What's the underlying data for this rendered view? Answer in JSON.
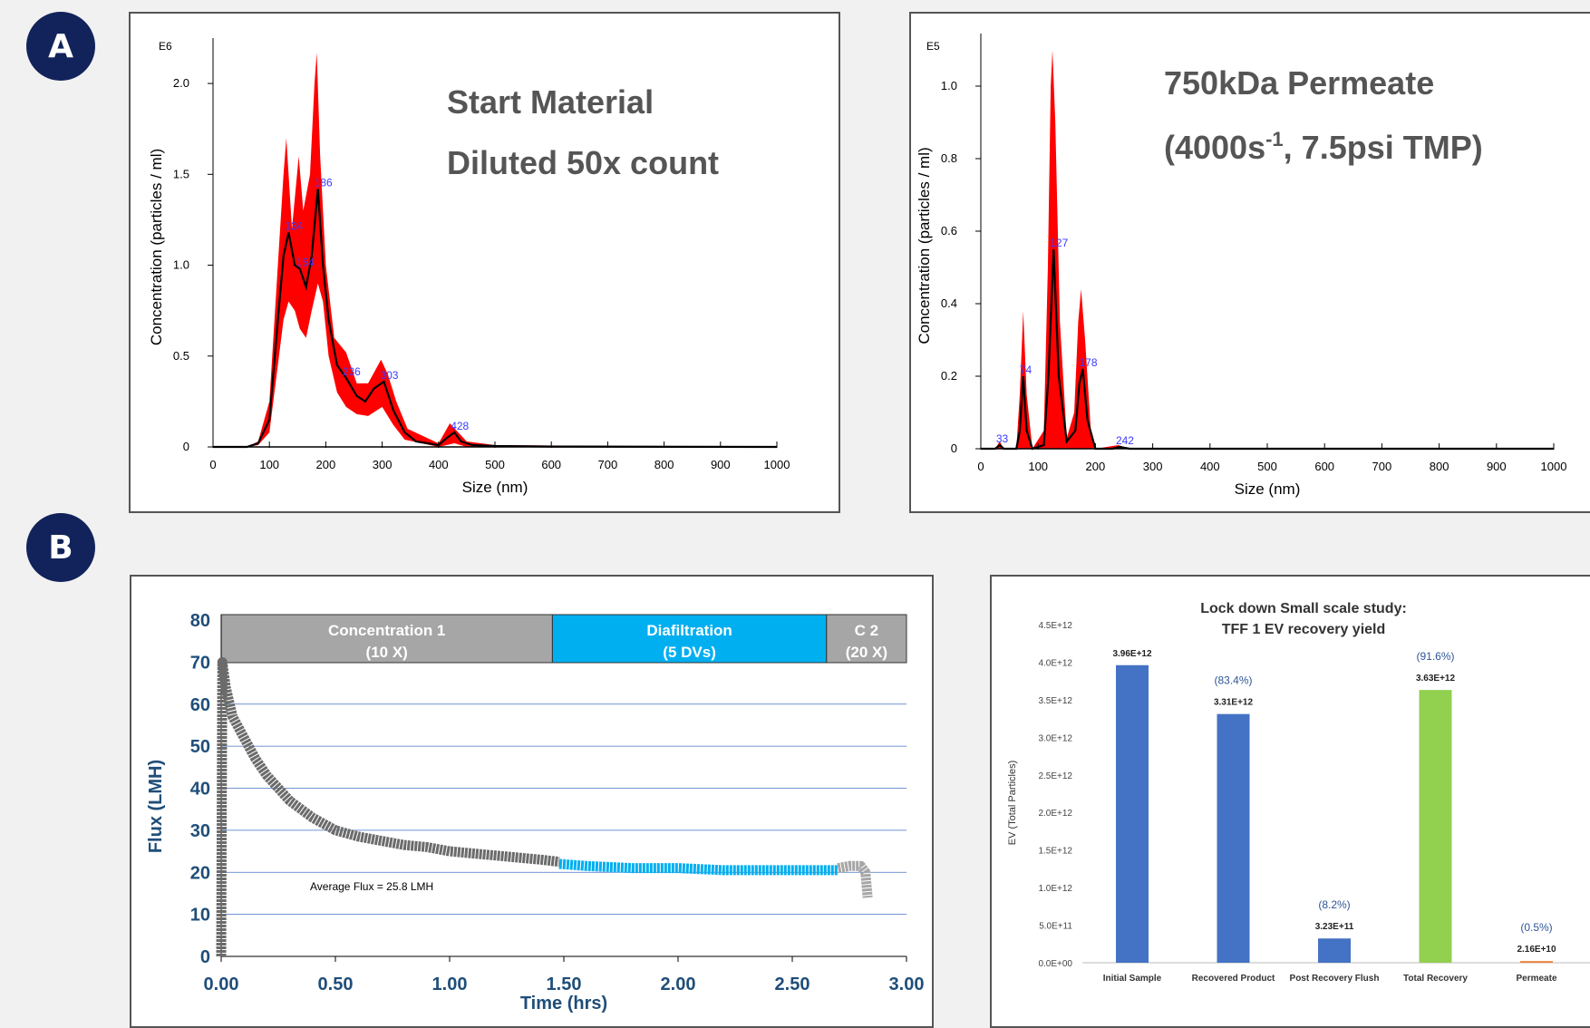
{
  "badges": {
    "a": "A",
    "b": "B"
  },
  "chart_data": [
    {
      "type": "line",
      "title": "Start Material",
      "subtitle": "Diluted 50x count",
      "multiplier_label": "E6",
      "xlabel": "Size (nm)",
      "ylabel": "Concentration (particles / ml)",
      "xlim": [
        0,
        1000
      ],
      "ylim": [
        0,
        2.2
      ],
      "xticks": [
        0,
        100,
        200,
        300,
        400,
        500,
        600,
        700,
        800,
        900,
        1000
      ],
      "yticks": [
        {
          "v": 0,
          "label": "0"
        },
        {
          "v": 0.5,
          "label": "0.5"
        },
        {
          "v": 1.0,
          "label": "1.0"
        },
        {
          "v": 1.5,
          "label": "1.5"
        },
        {
          "v": 2.0,
          "label": "2.0"
        }
      ],
      "series": [
        {
          "role": "mean",
          "color": "#000000",
          "values": [
            [
              0,
              0
            ],
            [
              60,
              0
            ],
            [
              80,
              0.02
            ],
            [
              100,
              0.15
            ],
            [
              115,
              0.7
            ],
            [
              125,
              1.05
            ],
            [
              134,
              1.18
            ],
            [
              145,
              1.0
            ],
            [
              154,
              0.98
            ],
            [
              165,
              0.88
            ],
            [
              175,
              1.05
            ],
            [
              186,
              1.42
            ],
            [
              195,
              1.0
            ],
            [
              205,
              0.7
            ],
            [
              220,
              0.45
            ],
            [
              236,
              0.38
            ],
            [
              255,
              0.28
            ],
            [
              270,
              0.25
            ],
            [
              285,
              0.32
            ],
            [
              303,
              0.36
            ],
            [
              320,
              0.2
            ],
            [
              340,
              0.08
            ],
            [
              360,
              0.03
            ],
            [
              400,
              0.01
            ],
            [
              415,
              0.05
            ],
            [
              428,
              0.08
            ],
            [
              440,
              0.03
            ],
            [
              460,
              0.01
            ],
            [
              500,
              0.005
            ],
            [
              600,
              0.002
            ],
            [
              1000,
              0
            ]
          ]
        },
        {
          "role": "error_band",
          "color": "#ff0000",
          "upper": [
            [
              0,
              0
            ],
            [
              60,
              0
            ],
            [
              80,
              0.03
            ],
            [
              100,
              0.25
            ],
            [
              115,
              1.0
            ],
            [
              125,
              1.5
            ],
            [
              130,
              1.7
            ],
            [
              140,
              1.2
            ],
            [
              152,
              1.6
            ],
            [
              160,
              1.3
            ],
            [
              172,
              1.5
            ],
            [
              180,
              2.0
            ],
            [
              184,
              2.17
            ],
            [
              190,
              1.6
            ],
            [
              200,
              1.0
            ],
            [
              215,
              0.6
            ],
            [
              236,
              0.52
            ],
            [
              255,
              0.35
            ],
            [
              275,
              0.35
            ],
            [
              298,
              0.48
            ],
            [
              310,
              0.4
            ],
            [
              325,
              0.25
            ],
            [
              345,
              0.1
            ],
            [
              400,
              0.02
            ],
            [
              420,
              0.13
            ],
            [
              435,
              0.08
            ],
            [
              450,
              0.03
            ],
            [
              500,
              0.01
            ],
            [
              1000,
              0
            ]
          ],
          "lower": [
            [
              0,
              0
            ],
            [
              60,
              0
            ],
            [
              80,
              0.01
            ],
            [
              100,
              0.08
            ],
            [
              115,
              0.45
            ],
            [
              125,
              0.7
            ],
            [
              134,
              0.8
            ],
            [
              145,
              0.75
            ],
            [
              154,
              0.65
            ],
            [
              165,
              0.6
            ],
            [
              175,
              0.75
            ],
            [
              186,
              0.9
            ],
            [
              195,
              0.8
            ],
            [
              205,
              0.5
            ],
            [
              220,
              0.3
            ],
            [
              236,
              0.22
            ],
            [
              255,
              0.18
            ],
            [
              275,
              0.17
            ],
            [
              300,
              0.22
            ],
            [
              320,
              0.12
            ],
            [
              340,
              0.04
            ],
            [
              400,
              0.0
            ],
            [
              428,
              0.02
            ],
            [
              450,
              0.0
            ],
            [
              1000,
              0
            ]
          ]
        }
      ],
      "peak_labels": [
        {
          "x": 134,
          "y": 1.18,
          "text": "134"
        },
        {
          "x": 154,
          "y": 0.98,
          "text": "154"
        },
        {
          "x": 186,
          "y": 1.42,
          "text": "186"
        },
        {
          "x": 236,
          "y": 0.38,
          "text": "236"
        },
        {
          "x": 303,
          "y": 0.36,
          "text": "303"
        },
        {
          "x": 428,
          "y": 0.08,
          "text": "428"
        }
      ]
    },
    {
      "type": "line",
      "title": "750kDa Permeate",
      "subtitle": "(4000s",
      "subtitle_sup": "-1",
      "subtitle_rest": ", 7.5psi TMP)",
      "multiplier_label": "E5",
      "xlabel": "Size (nm)",
      "ylabel": "Concentration (particles / ml)",
      "xlim": [
        0,
        1000
      ],
      "ylim": [
        0,
        1.12
      ],
      "xticks": [
        0,
        100,
        200,
        300,
        400,
        500,
        600,
        700,
        800,
        900,
        1000
      ],
      "yticks": [
        {
          "v": 0,
          "label": "0"
        },
        {
          "v": 0.2,
          "label": "0.2"
        },
        {
          "v": 0.4,
          "label": "0.4"
        },
        {
          "v": 0.6,
          "label": "0.6"
        },
        {
          "v": 0.8,
          "label": "0.8"
        },
        {
          "v": 1.0,
          "label": "1.0"
        }
      ],
      "series": [
        {
          "role": "mean",
          "color": "#000000",
          "values": [
            [
              0,
              0
            ],
            [
              25,
              0
            ],
            [
              33,
              0.01
            ],
            [
              40,
              0
            ],
            [
              62,
              0
            ],
            [
              68,
              0.05
            ],
            [
              74,
              0.2
            ],
            [
              80,
              0.05
            ],
            [
              90,
              0
            ],
            [
              110,
              0.01
            ],
            [
              118,
              0.2
            ],
            [
              127,
              0.55
            ],
            [
              136,
              0.2
            ],
            [
              150,
              0.02
            ],
            [
              165,
              0.05
            ],
            [
              172,
              0.18
            ],
            [
              178,
              0.22
            ],
            [
              186,
              0.08
            ],
            [
              200,
              0.0
            ],
            [
              230,
              0.0
            ],
            [
              242,
              0.005
            ],
            [
              260,
              0
            ],
            [
              1000,
              0
            ]
          ]
        },
        {
          "role": "error_band",
          "color": "#ff0000",
          "upper": [
            [
              0,
              0
            ],
            [
              25,
              0
            ],
            [
              33,
              0.02
            ],
            [
              40,
              0
            ],
            [
              62,
              0
            ],
            [
              68,
              0.15
            ],
            [
              74,
              0.38
            ],
            [
              80,
              0.15
            ],
            [
              90,
              0
            ],
            [
              110,
              0.05
            ],
            [
              117,
              0.5
            ],
            [
              122,
              1.0
            ],
            [
              125,
              1.1
            ],
            [
              130,
              0.9
            ],
            [
              138,
              0.35
            ],
            [
              150,
              0.03
            ],
            [
              163,
              0.1
            ],
            [
              170,
              0.35
            ],
            [
              175,
              0.44
            ],
            [
              182,
              0.3
            ],
            [
              192,
              0.05
            ],
            [
              200,
              0
            ],
            [
              240,
              0.01
            ],
            [
              260,
              0
            ],
            [
              1000,
              0
            ]
          ],
          "lower": [
            [
              0,
              0
            ],
            [
              1000,
              0
            ]
          ]
        }
      ],
      "peak_labels": [
        {
          "x": 33,
          "y": 0.01,
          "text": "33"
        },
        {
          "x": 74,
          "y": 0.2,
          "text": "74"
        },
        {
          "x": 127,
          "y": 0.55,
          "text": "127"
        },
        {
          "x": 178,
          "y": 0.22,
          "text": "178"
        },
        {
          "x": 242,
          "y": 0.005,
          "text": "242"
        }
      ]
    },
    {
      "type": "scatter",
      "xlabel": "Time (hrs)",
      "ylabel": "Flux (LMH)",
      "xlim": [
        0,
        3
      ],
      "ylim": [
        0,
        80
      ],
      "xticks": [
        {
          "v": 0,
          "label": "0.00"
        },
        {
          "v": 0.5,
          "label": "0.50"
        },
        {
          "v": 1.0,
          "label": "1.00"
        },
        {
          "v": 1.5,
          "label": "1.50"
        },
        {
          "v": 2.0,
          "label": "2.00"
        },
        {
          "v": 2.5,
          "label": "2.50"
        },
        {
          "v": 3.0,
          "label": "3.00"
        }
      ],
      "yticks": [
        0,
        10,
        20,
        30,
        40,
        50,
        60,
        70,
        80
      ],
      "grid": true,
      "annotation": "Average Flux = 25.8 LMH",
      "phases": [
        {
          "line1": "Concentration 1",
          "line2": "(10 X)",
          "x0": 0,
          "x1": 1.45,
          "color": "#a6a6a6"
        },
        {
          "line1": "Diafiltration",
          "line2": "(5 DVs)",
          "x0": 1.45,
          "x1": 2.65,
          "color": "#00aff0"
        },
        {
          "line1": "C 2",
          "line2": "(20 X)",
          "x0": 2.65,
          "x1": 3.0,
          "color": "#a6a6a6"
        }
      ],
      "series": [
        {
          "name": "",
          "color": "#6b6b6b",
          "values": [
            [
              0,
              0
            ],
            [
              0.005,
              70
            ],
            [
              0.02,
              64
            ],
            [
              0.05,
              57
            ],
            [
              0.1,
              52
            ],
            [
              0.15,
              47
            ],
            [
              0.2,
              43
            ],
            [
              0.3,
              37
            ],
            [
              0.4,
              33
            ],
            [
              0.5,
              30
            ],
            [
              0.6,
              28.5
            ],
            [
              0.7,
              27.5
            ],
            [
              0.8,
              26.5
            ],
            [
              0.9,
              26
            ],
            [
              1.0,
              25
            ],
            [
              1.1,
              24.5
            ],
            [
              1.2,
              24
            ],
            [
              1.3,
              23.5
            ],
            [
              1.4,
              23
            ],
            [
              1.48,
              22.5
            ]
          ]
        },
        {
          "name": "",
          "color": "#00aff0",
          "values": [
            [
              1.48,
              22
            ],
            [
              1.6,
              21.5
            ],
            [
              1.8,
              21
            ],
            [
              2.0,
              21
            ],
            [
              2.2,
              20.5
            ],
            [
              2.4,
              20.5
            ],
            [
              2.6,
              20.5
            ],
            [
              2.7,
              20.5
            ]
          ]
        },
        {
          "name": "",
          "color": "#a6a6a6",
          "values": [
            [
              2.7,
              21
            ],
            [
              2.75,
              21.5
            ],
            [
              2.8,
              21.5
            ],
            [
              2.82,
              20
            ],
            [
              2.83,
              14
            ]
          ]
        }
      ]
    },
    {
      "type": "bar",
      "title": "Lock down Small scale study:",
      "subtitle": "TFF 1 EV recovery yield",
      "ylabel": "EV (Total Particles)",
      "ylim": [
        0,
        4500000000000.0
      ],
      "yticks": [
        {
          "v": 0,
          "label": "0.0E+00"
        },
        {
          "v": 500000000000.0,
          "label": "5.0E+11"
        },
        {
          "v": 1000000000000.0,
          "label": "1.0E+12"
        },
        {
          "v": 1500000000000.0,
          "label": "1.5E+12"
        },
        {
          "v": 2000000000000.0,
          "label": "2.0E+12"
        },
        {
          "v": 2500000000000.0,
          "label": "2.5E+12"
        },
        {
          "v": 3000000000000.0,
          "label": "3.0E+12"
        },
        {
          "v": 3500000000000.0,
          "label": "3.5E+12"
        },
        {
          "v": 4000000000000.0,
          "label": "4.0E+12"
        },
        {
          "v": 4500000000000.0,
          "label": "4.5E+12"
        }
      ],
      "categories": [
        "Initial Sample",
        "Recovered Product",
        "Post Recovery Flush",
        "Total Recovery",
        "Permeate"
      ],
      "values": [
        3960000000000.0,
        3310000000000.0,
        323000000000.0,
        3630000000000.0,
        21600000000.0
      ],
      "value_labels": [
        "3.96E+12",
        "3.31E+12",
        "3.23E+11",
        "3.63E+12",
        "2.16E+10"
      ],
      "percent_labels": [
        "",
        "(83.4%)",
        "(8.2%)",
        "(91.6%)",
        "(0.5%)"
      ],
      "colors": [
        "#4472c4",
        "#4472c4",
        "#4472c4",
        "#92d050",
        "#ed7d31"
      ]
    }
  ]
}
